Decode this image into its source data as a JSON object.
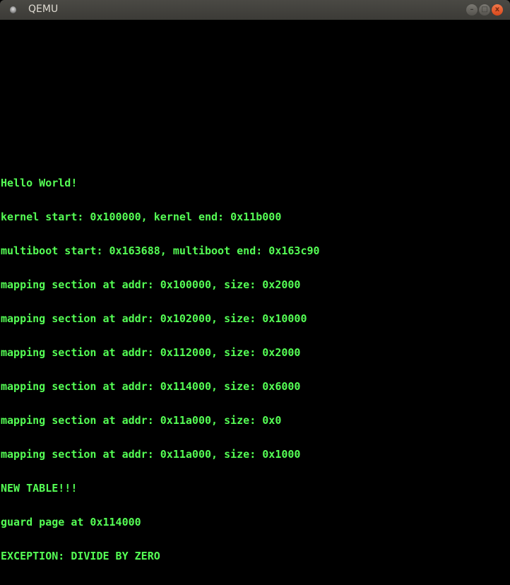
{
  "window": {
    "title": "QEMU",
    "buttons": {
      "minimize": "–",
      "maximize": "□",
      "close": "x"
    }
  },
  "colors": {
    "text": "#55ff55",
    "background": "#000000",
    "close_button": "#e8582a"
  },
  "console": {
    "lines": [
      "Hello World!",
      "kernel start: 0x100000, kernel end: 0x11b000",
      "multiboot start: 0x163688, multiboot end: 0x163c90",
      "mapping section at addr: 0x100000, size: 0x2000",
      "mapping section at addr: 0x102000, size: 0x10000",
      "mapping section at addr: 0x112000, size: 0x2000",
      "mapping section at addr: 0x114000, size: 0x6000",
      "mapping section at addr: 0x11a000, size: 0x0",
      "mapping section at addr: 0x11a000, size: 0x1000",
      "NEW TABLE!!!",
      "guard page at 0x114000",
      "EXCEPTION: DIVIDE BY ZERO"
    ]
  }
}
